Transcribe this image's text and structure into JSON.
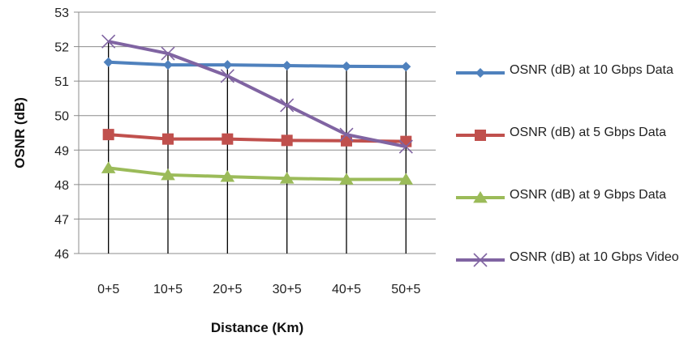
{
  "chart_data": {
    "type": "line",
    "xlabel": "Distance (Km)",
    "ylabel": "OSNR (dB)",
    "categories": [
      "0+5",
      "10+5",
      "20+5",
      "30+5",
      "40+5",
      "50+5"
    ],
    "ylim": [
      46,
      53
    ],
    "yticks": [
      "46",
      "47",
      "48",
      "49",
      "50",
      "51",
      "52",
      "53"
    ],
    "grid": true,
    "legend_position": "right",
    "series": [
      {
        "name": "OSNR (dB) at 10 Gbps Data",
        "marker": "diamond",
        "color": "#4F81BD",
        "values": [
          51.55,
          51.47,
          51.47,
          51.45,
          51.43,
          51.42
        ]
      },
      {
        "name": "OSNR (dB) at 5 Gbps Data",
        "marker": "square",
        "color": "#C0504D",
        "values": [
          49.45,
          49.32,
          49.32,
          49.28,
          49.27,
          49.25
        ]
      },
      {
        "name": "OSNR (dB) at 9 Gbps Data",
        "marker": "triangle",
        "color": "#9BBB59",
        "values": [
          48.48,
          48.28,
          48.23,
          48.18,
          48.15,
          48.15
        ]
      },
      {
        "name": "OSNR (dB) at 10 Gbps Video",
        "marker": "x",
        "color": "#8064A2",
        "values": [
          52.15,
          51.8,
          51.15,
          50.3,
          49.45,
          49.1
        ]
      }
    ]
  }
}
